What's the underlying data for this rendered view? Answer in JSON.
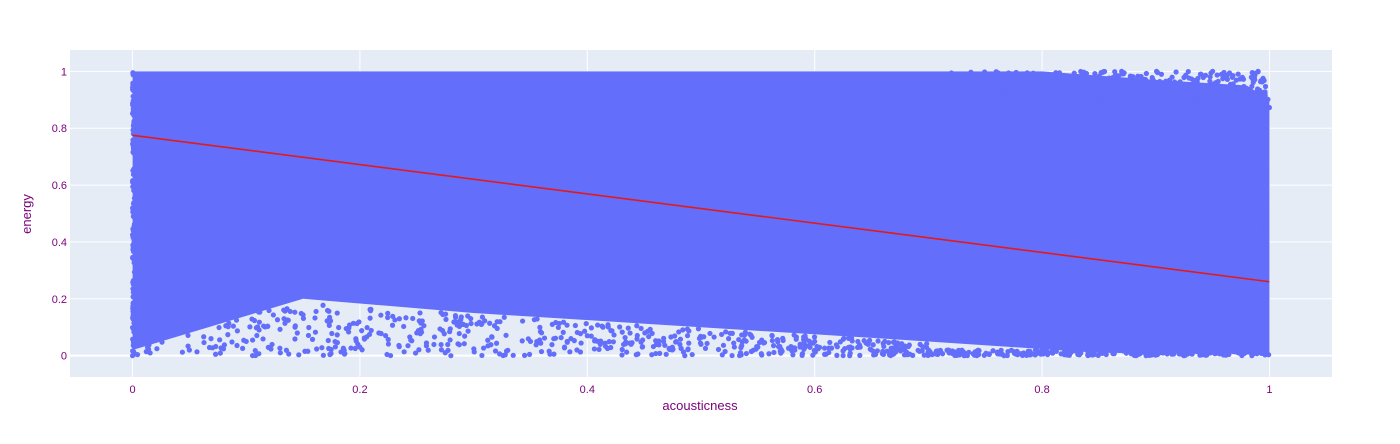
{
  "chart_data": {
    "type": "scatter",
    "title": "",
    "xlabel": "acousticness",
    "ylabel": "energy",
    "xlim": [
      -0.055,
      1.055
    ],
    "ylim": [
      -0.075,
      1.075
    ],
    "x_ticks": [
      0,
      0.2,
      0.4,
      0.6,
      0.8,
      1
    ],
    "x_tick_labels": [
      "0",
      "0.2",
      "0.4",
      "0.6",
      "0.8",
      "1"
    ],
    "y_ticks": [
      0,
      0.2,
      0.4,
      0.6,
      0.8,
      1
    ],
    "y_tick_labels": [
      "0",
      "0.2",
      "0.4",
      "0.6",
      "0.8",
      "1"
    ],
    "grid": true,
    "series": [
      {
        "mode": "markers",
        "color": "#636efa",
        "description_points": "dense cloud covering x 0-1, y ~0.02-1",
        "sample_points": [
          {
            "x": 0.0,
            "y": 0.0
          },
          {
            "x": 0.05,
            "y": 0.02
          },
          {
            "x": 0.1,
            "y": 0.05
          },
          {
            "x": 0.13,
            "y": 0.01
          },
          {
            "x": 0.2,
            "y": 0.03
          },
          {
            "x": 0.25,
            "y": 0.08
          },
          {
            "x": 0.28,
            "y": 0.0
          },
          {
            "x": 0.35,
            "y": 0.05
          },
          {
            "x": 0.38,
            "y": 0.03
          },
          {
            "x": 0.4,
            "y": 0.07
          },
          {
            "x": 0.5,
            "y": 0.04
          },
          {
            "x": 0.55,
            "y": 0.03
          },
          {
            "x": 0.6,
            "y": 0.05
          },
          {
            "x": 0.64,
            "y": 0.03
          },
          {
            "x": 0.72,
            "y": 0.01
          },
          {
            "x": 0.85,
            "y": 0.02
          },
          {
            "x": 0.9,
            "y": 0.92
          },
          {
            "x": 0.95,
            "y": 1.0
          },
          {
            "x": 0.99,
            "y": 1.0
          },
          {
            "x": 0.87,
            "y": 1.0
          },
          {
            "x": 0.93,
            "y": 0.95
          }
        ]
      },
      {
        "mode": "lines",
        "color": "#e31a1c",
        "x": [
          0,
          1
        ],
        "y": [
          0.775,
          0.26
        ]
      }
    ]
  }
}
